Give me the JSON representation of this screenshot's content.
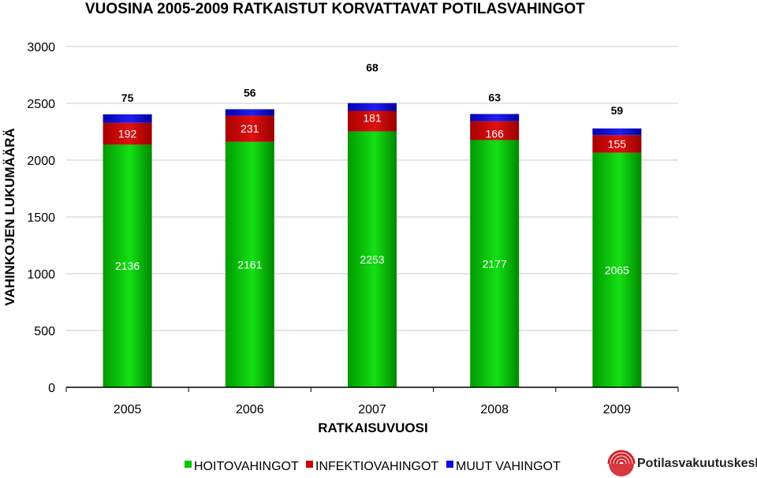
{
  "chart_data": {
    "type": "bar",
    "stacked": true,
    "title": "VUOSINA 2005-2009 RATKAISTUT KORVATTAVAT POTILASVAHINGOT",
    "xlabel": "RATKAISUVUOSI",
    "ylabel": "VAHINKOJEN LUKUMÄÄRÄ",
    "ylim": [
      0,
      3000
    ],
    "yticks": [
      "0",
      "500",
      "1000",
      "1500",
      "2000",
      "2500",
      "3000"
    ],
    "categories": [
      "2005",
      "2006",
      "2007",
      "2008",
      "2009"
    ],
    "series": [
      {
        "name": "HOITOVAHINGOT",
        "values": [
          2136,
          2161,
          2253,
          2177,
          2065
        ],
        "color": "#00c800"
      },
      {
        "name": "INFEKTIOVAHINGOT",
        "values": [
          192,
          231,
          181,
          166,
          155
        ],
        "color": "#d20000"
      },
      {
        "name": "MUUT VAHINGOT",
        "values": [
          75,
          56,
          68,
          63,
          59
        ],
        "color": "#0a0ae0"
      }
    ],
    "grid": true,
    "legend_position": "bottom"
  },
  "logo": {
    "text": "Potilasvakuutuskeskus",
    "color": "#d2232a"
  }
}
